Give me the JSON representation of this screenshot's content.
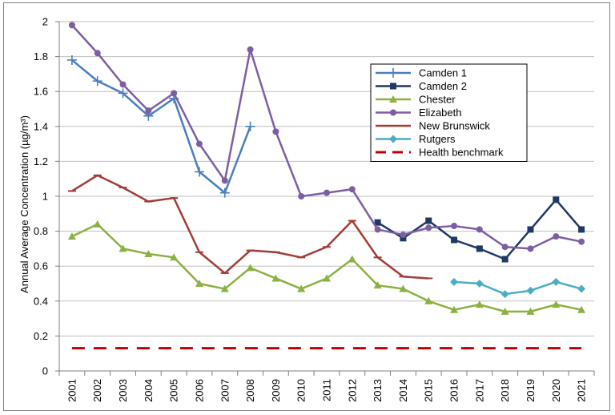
{
  "chart_data": {
    "type": "line",
    "title": "",
    "xlabel": "",
    "ylabel": "Annual Average Concentration (µg/m³)",
    "ylim": [
      0,
      2
    ],
    "yticks": [
      "0",
      "0.2",
      "0.4",
      "0.6",
      "0.8",
      "1",
      "1.2",
      "1.4",
      "1.6",
      "1.8",
      "2"
    ],
    "categories": [
      "2001",
      "2002",
      "2003",
      "2004",
      "2005",
      "2006",
      "2007",
      "2008",
      "2009",
      "2010",
      "2011",
      "2012",
      "2013",
      "2014",
      "2015",
      "2016",
      "2017",
      "2018",
      "2019",
      "2020",
      "2021"
    ],
    "grid": "horizontal",
    "legend_position": "top-right",
    "series": [
      {
        "name": "Camden 1",
        "color": "#4a7ebb",
        "marker": "plus",
        "values": [
          1.78,
          1.66,
          1.59,
          1.46,
          1.56,
          1.14,
          1.02,
          1.4,
          null,
          null,
          null,
          null,
          null,
          null,
          null,
          null,
          null,
          null,
          null,
          null,
          null
        ]
      },
      {
        "name": "Camden 2",
        "color": "#1f3864",
        "marker": "square",
        "values": [
          null,
          null,
          null,
          null,
          null,
          null,
          null,
          null,
          null,
          null,
          null,
          null,
          0.85,
          0.76,
          0.86,
          0.75,
          0.7,
          0.64,
          0.81,
          0.98,
          0.81
        ]
      },
      {
        "name": "Chester",
        "color": "#8cb041",
        "marker": "triangle",
        "values": [
          0.77,
          0.84,
          0.7,
          0.67,
          0.65,
          0.5,
          0.47,
          0.59,
          0.53,
          0.47,
          0.53,
          0.64,
          0.49,
          0.47,
          0.4,
          0.35,
          0.38,
          0.34,
          0.34,
          0.38,
          0.35
        ]
      },
      {
        "name": "Elizabeth",
        "color": "#7d5ea3",
        "marker": "circle",
        "values": [
          1.98,
          1.82,
          1.64,
          1.49,
          1.59,
          1.3,
          1.09,
          1.84,
          1.37,
          1.0,
          1.02,
          1.04,
          0.81,
          0.78,
          0.82,
          0.83,
          0.81,
          0.71,
          0.7,
          0.77,
          0.74
        ]
      },
      {
        "name": "New Brunswick",
        "color": "#a33c36",
        "marker": "dash",
        "values": [
          1.03,
          1.12,
          1.05,
          0.97,
          0.99,
          0.68,
          0.56,
          0.69,
          0.68,
          0.65,
          0.71,
          0.86,
          0.65,
          0.54,
          0.53,
          null,
          null,
          null,
          null,
          null,
          null
        ]
      },
      {
        "name": "Rutgers",
        "color": "#4bacc6",
        "marker": "diamond",
        "values": [
          null,
          null,
          null,
          null,
          null,
          null,
          null,
          null,
          null,
          null,
          null,
          null,
          null,
          null,
          null,
          0.51,
          0.5,
          0.44,
          0.46,
          0.51,
          0.47
        ]
      },
      {
        "name": "Health benchmark",
        "color": "#c00000",
        "marker": "none",
        "dashed": true,
        "values": [
          0.13,
          0.13,
          0.13,
          0.13,
          0.13,
          0.13,
          0.13,
          0.13,
          0.13,
          0.13,
          0.13,
          0.13,
          0.13,
          0.13,
          0.13,
          0.13,
          0.13,
          0.13,
          0.13,
          0.13,
          0.13
        ]
      }
    ]
  }
}
